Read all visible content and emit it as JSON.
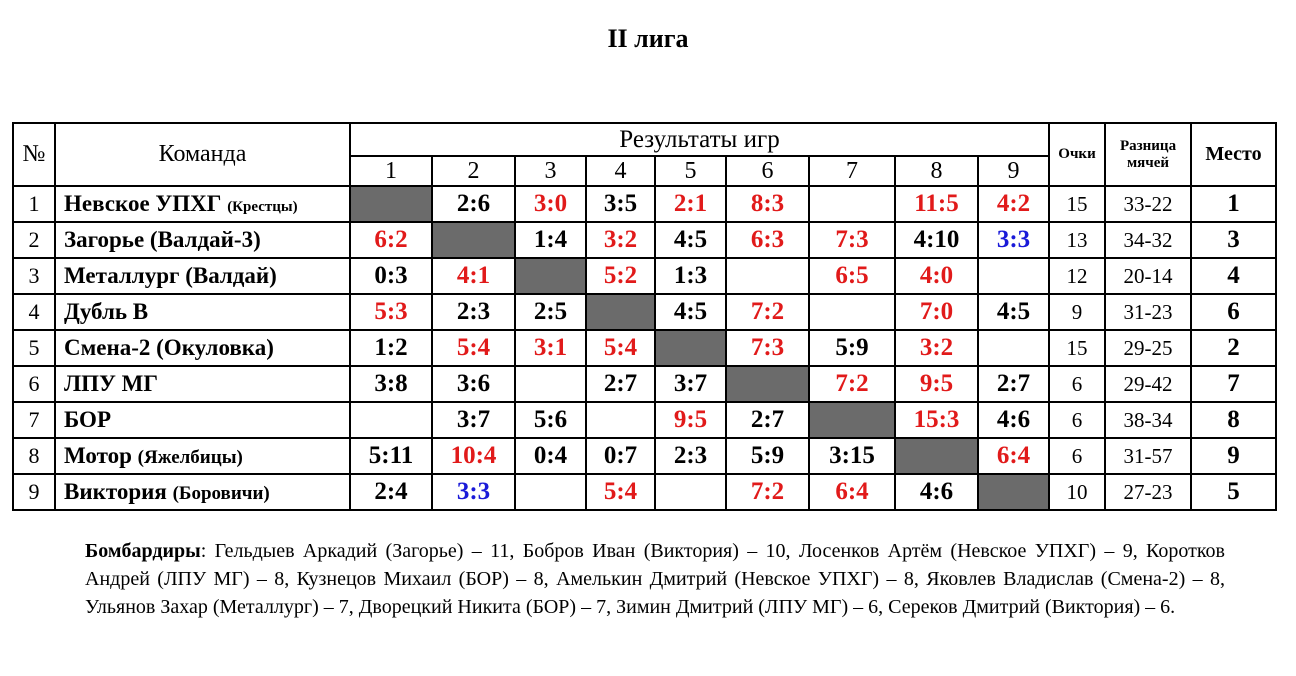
{
  "title": "II лига",
  "headers": {
    "num": "№",
    "team": "Команда",
    "results": "Результаты игр",
    "points": "Очки",
    "diff": "Разница мячей",
    "place": "Место",
    "cols": [
      "1",
      "2",
      "3",
      "4",
      "5",
      "6",
      "7",
      "8",
      "9"
    ]
  },
  "rows": [
    {
      "num": "1",
      "name": "Невское УПХГ",
      "city": "(Крестцы)",
      "results": [
        "",
        "2:6",
        "3:0",
        "3:5",
        "2:1",
        "8:3",
        "",
        "11:5",
        "4:2"
      ],
      "colors": [
        "self",
        "b",
        "r",
        "b",
        "r",
        "r",
        "",
        "r",
        "r"
      ],
      "points": "15",
      "diff": "33-22",
      "place": "1"
    },
    {
      "num": "2",
      "name": "Загорье (Валдай-3)",
      "city": "",
      "results": [
        "6:2",
        "",
        "1:4",
        "3:2",
        "4:5",
        "6:3",
        "7:3",
        "4:10",
        "3:3"
      ],
      "colors": [
        "r",
        "self",
        "b",
        "r",
        "b",
        "r",
        "r",
        "b",
        "u"
      ],
      "points": "13",
      "diff": "34-32",
      "place": "3"
    },
    {
      "num": "3",
      "name": "Металлург (Валдай)",
      "city": "",
      "results": [
        "0:3",
        "4:1",
        "",
        "5:2",
        "1:3",
        "",
        "6:5",
        "4:0",
        ""
      ],
      "colors": [
        "b",
        "r",
        "self",
        "r",
        "b",
        "",
        "r",
        "r",
        ""
      ],
      "points": "12",
      "diff": "20-14",
      "place": "4"
    },
    {
      "num": "4",
      "name": "Дубль В",
      "city": "",
      "results": [
        "5:3",
        "2:3",
        "2:5",
        "",
        "4:5",
        "7:2",
        "",
        "7:0",
        "4:5"
      ],
      "colors": [
        "r",
        "b",
        "b",
        "self",
        "b",
        "r",
        "",
        "r",
        "b"
      ],
      "points": "9",
      "diff": "31-23",
      "place": "6"
    },
    {
      "num": "5",
      "name": "Смена-2 (Окуловка)",
      "city": "",
      "results": [
        "1:2",
        "5:4",
        "3:1",
        "5:4",
        "",
        "7:3",
        "5:9",
        "3:2",
        ""
      ],
      "colors": [
        "b",
        "r",
        "r",
        "r",
        "self",
        "r",
        "b",
        "r",
        ""
      ],
      "points": "15",
      "diff": "29-25",
      "place": "2"
    },
    {
      "num": "6",
      "name": "ЛПУ МГ",
      "city": "",
      "results": [
        "3:8",
        "3:6",
        "",
        "2:7",
        "3:7",
        "",
        "7:2",
        "9:5",
        "2:7"
      ],
      "colors": [
        "b",
        "b",
        "",
        "b",
        "b",
        "self",
        "r",
        "r",
        "b"
      ],
      "points": "6",
      "diff": "29-42",
      "place": "7"
    },
    {
      "num": "7",
      "name": "БОР",
      "city": "",
      "results": [
        "",
        "3:7",
        "5:6",
        "",
        "9:5",
        "2:7",
        "",
        "15:3",
        "4:6"
      ],
      "colors": [
        "",
        "b",
        "b",
        "",
        "r",
        "b",
        "self",
        "r",
        "b"
      ],
      "points": "6",
      "diff": "38-34",
      "place": "8"
    },
    {
      "num": "8",
      "name": "Мотор",
      "city": "(Яжелбицы)",
      "results": [
        "5:11",
        "10:4",
        "0:4",
        "0:7",
        "2:3",
        "5:9",
        "3:15",
        "",
        "6:4"
      ],
      "colors": [
        "b",
        "r",
        "b",
        "b",
        "b",
        "b",
        "b",
        "self",
        "r"
      ],
      "points": "6",
      "diff": "31-57",
      "place": "9"
    },
    {
      "num": "9",
      "name": "Виктория",
      "city": "(Боровичи)",
      "results": [
        "2:4",
        "3:3",
        "",
        "5:4",
        "",
        "7:2",
        "6:4",
        "4:6",
        ""
      ],
      "colors": [
        "b",
        "u",
        "",
        "r",
        "",
        "r",
        "r",
        "b",
        "self"
      ],
      "points": "10",
      "diff": "27-23",
      "place": "5"
    }
  ],
  "scorers": {
    "label": "Бомбардиры",
    "text": ": Гельдыев Аркадий (Загорье) – 11, Бобров Иван (Виктория) – 10, Лосенков Артём (Невское УПХГ) – 9, Коротков Андрей (ЛПУ МГ) – 8, Кузнецов Михаил (БОР) – 8, Амелькин Дмитрий (Невское УПХГ) – 8, Яковлев Владислав (Смена-2) – 8, Ульянов Захар (Металлург) – 7, Дворецкий Никита (БОР) – 7, Зимин Дмитрий (ЛПУ МГ) – 6, Сереков Дмитрий (Виктория) – 6."
  }
}
